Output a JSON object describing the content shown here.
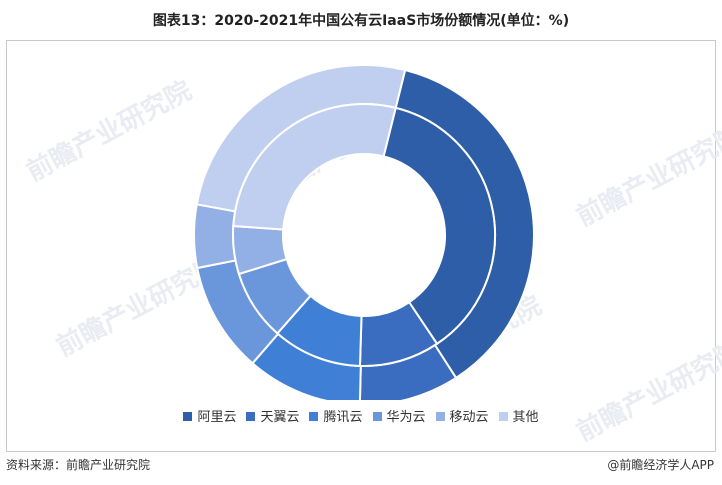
{
  "title": "图表13：2020-2021年中国公有云IaaS市场份额情况(单位：%)",
  "watermark": "前瞻产业研究院",
  "source": "资料来源：前瞻产业研究院",
  "brand": "@前瞻经济学人APP",
  "colors": [
    "#2e5ea8",
    "#3a6cc0",
    "#3f7fd6",
    "#6a96dc",
    "#93b0e6",
    "#c0cff0"
  ],
  "chart_data": {
    "type": "donut",
    "categories": [
      "阿里云",
      "天翼云",
      "腾讯云",
      "华为云",
      "移动云",
      "其他"
    ],
    "series": [
      {
        "values": [
          37.0,
          9.5,
          11.0,
          10.5,
          6.0,
          26.0
        ]
      },
      {
        "values": [
          36.7,
          9.9,
          11.0,
          8.7,
          5.9,
          27.8
        ]
      }
    ]
  }
}
